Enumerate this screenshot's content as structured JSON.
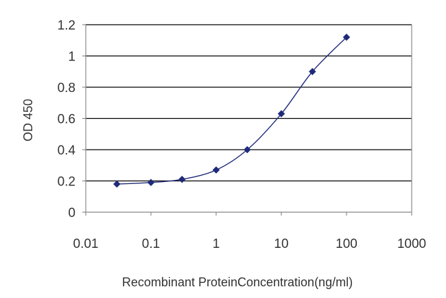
{
  "chart_data": {
    "type": "line",
    "title": "",
    "xlabel": "Recombinant ProteinConcentration(ng/ml)",
    "ylabel": "OD 450",
    "xscale": "log",
    "xlim": [
      0.01,
      1000
    ],
    "ylim": [
      0,
      1.2
    ],
    "x_ticks": [
      "0.01",
      "0.1",
      "1",
      "10",
      "100",
      "1000"
    ],
    "y_ticks": [
      "0",
      "0.2",
      "0.4",
      "0.6",
      "0.8",
      "1",
      "1.2"
    ],
    "grid": "horizontal",
    "legend": "none",
    "series": [
      {
        "x": [
          0.03,
          0.1,
          0.3,
          1,
          3,
          10,
          30,
          100
        ],
        "y": [
          0.18,
          0.19,
          0.21,
          0.27,
          0.4,
          0.63,
          0.9,
          1.12
        ],
        "color": "#1f2a7a",
        "marker": "diamond"
      }
    ]
  }
}
